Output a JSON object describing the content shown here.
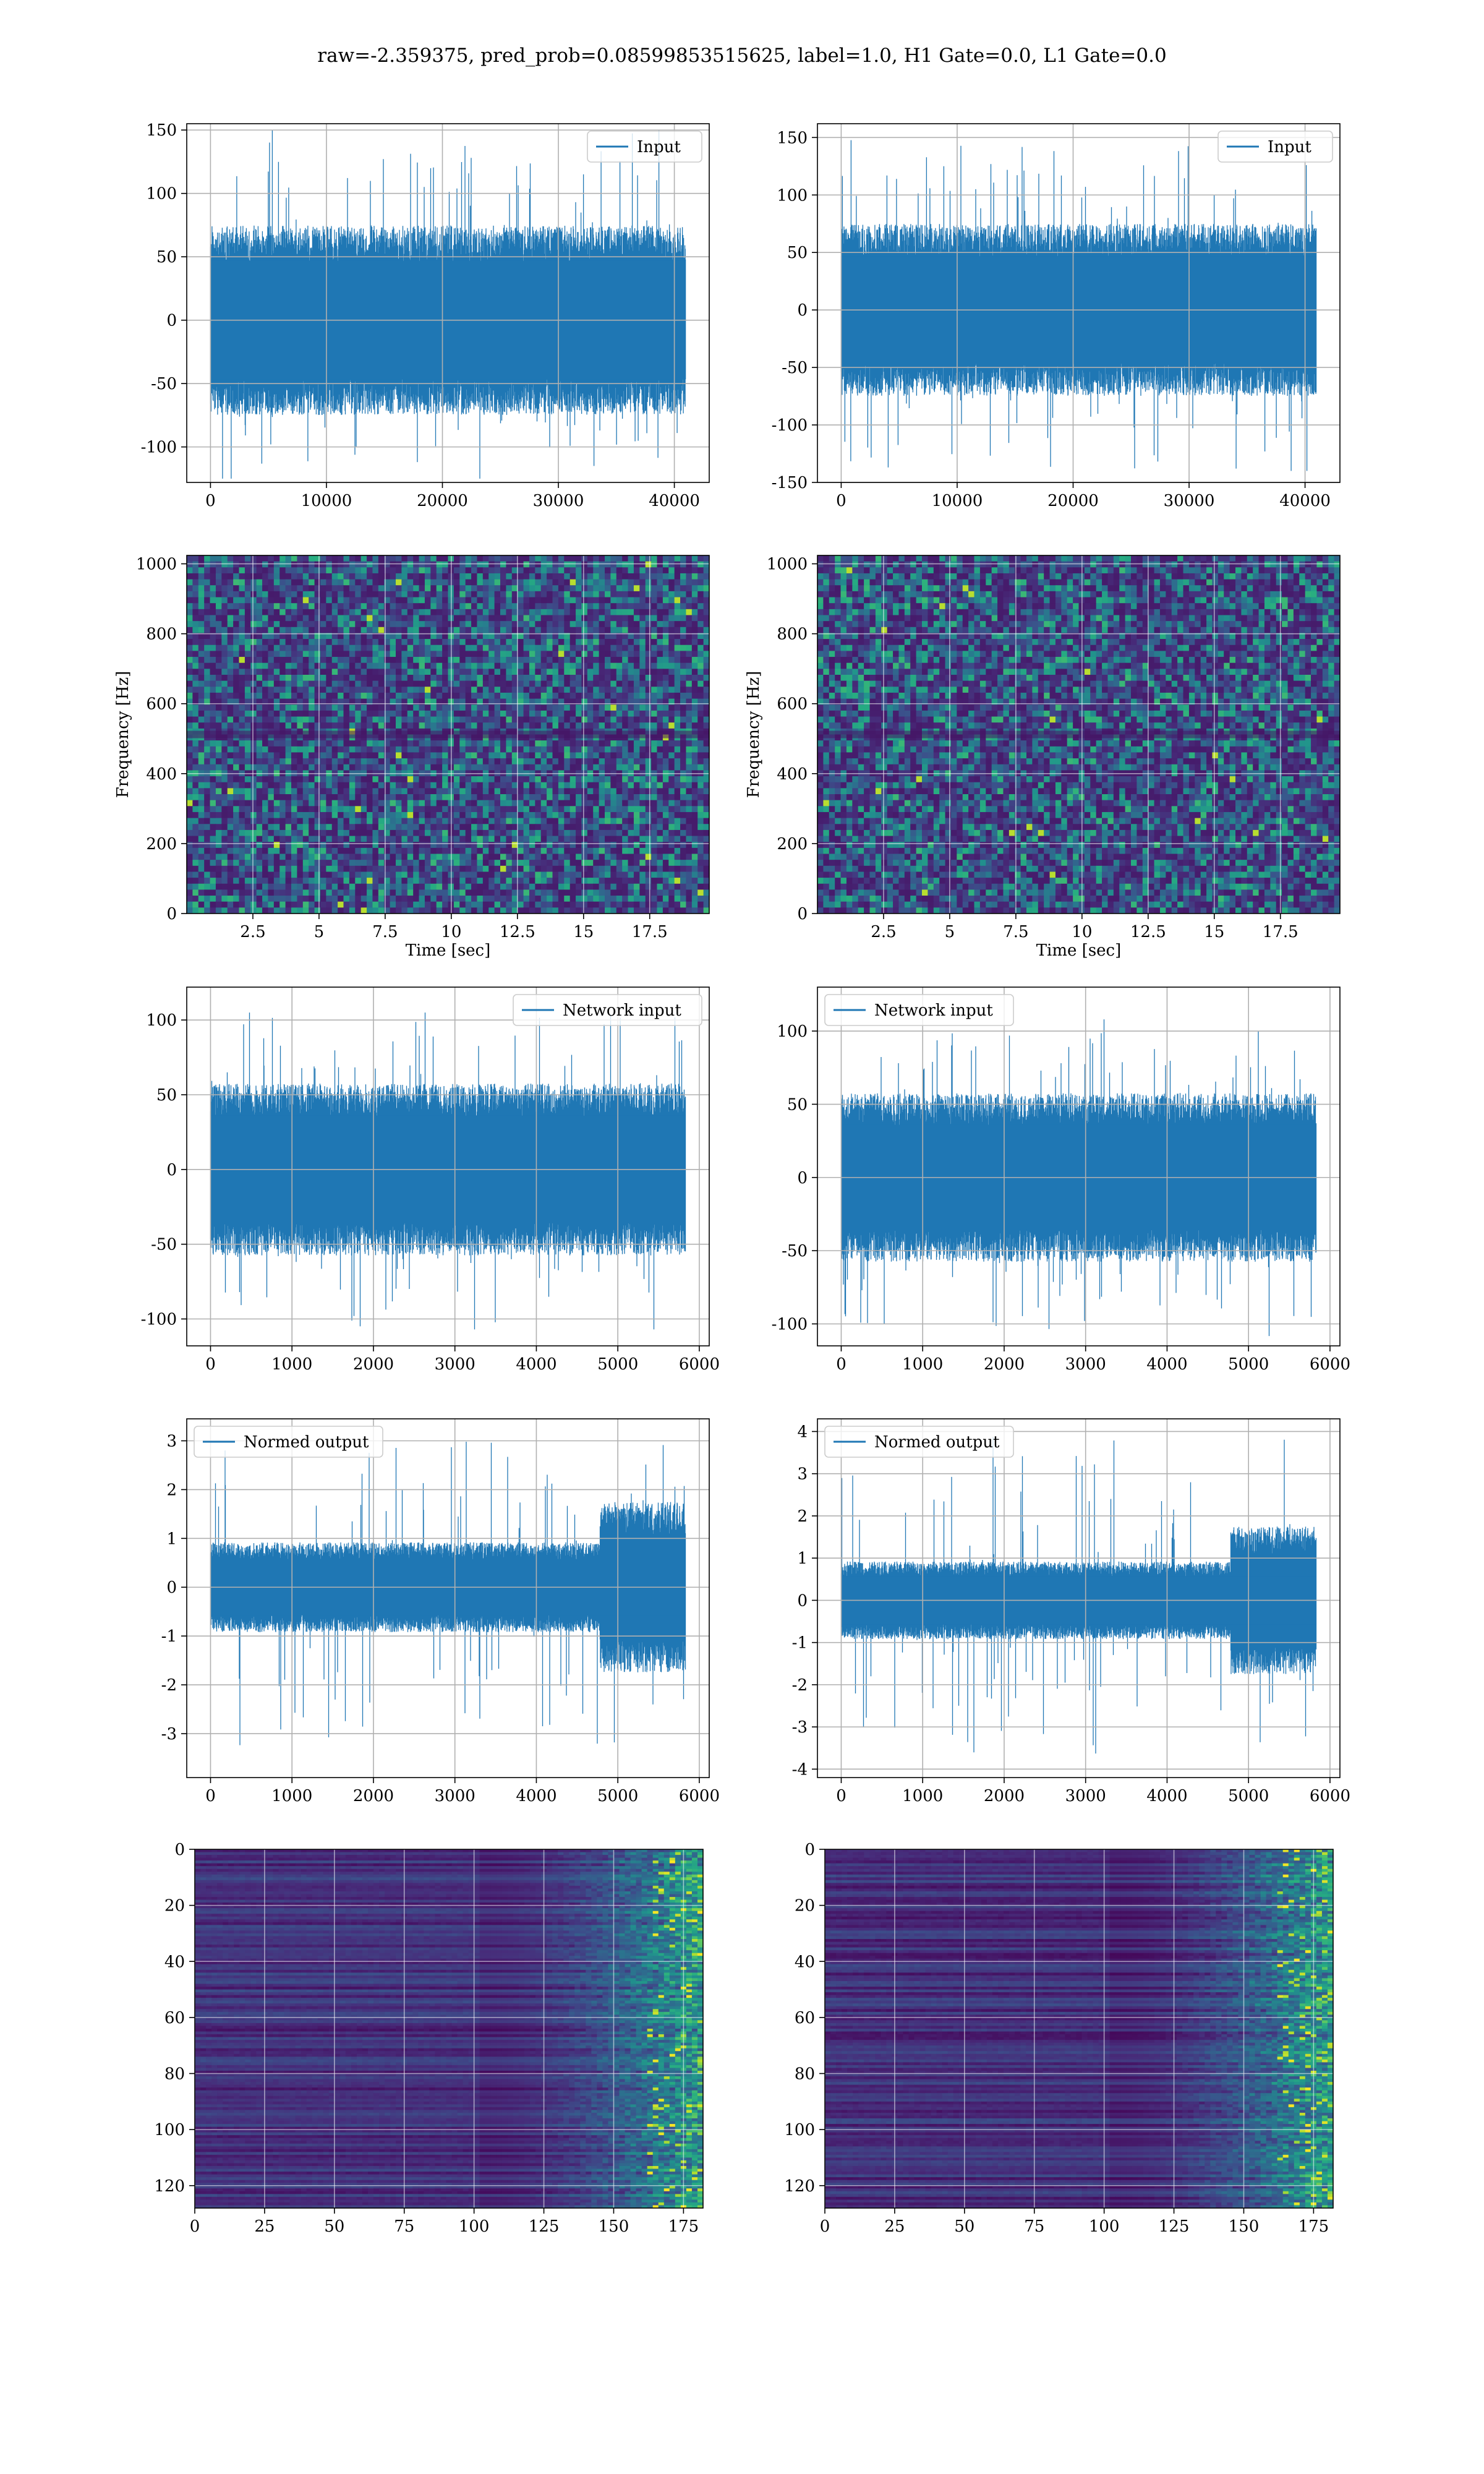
{
  "figure": {
    "suptitle": "raw=-2.359375, pred_prob=0.08599853515625, label=1.0, H1 Gate=0.0, L1 Gate=0.0"
  },
  "chart_data": [
    {
      "id": "input_left",
      "type": "line",
      "legend": "Input",
      "legend_loc": "upper right",
      "series": [
        {
          "name": "Input",
          "color": "#1f77b4",
          "n": 40960,
          "range": [
            -125,
            150
          ],
          "envelope": 65
        }
      ],
      "xlim": [
        -2048,
        43008
      ],
      "ylim": [
        -128,
        155
      ],
      "xticks": [
        0,
        10000,
        20000,
        30000,
        40000
      ],
      "yticks": [
        -100,
        -50,
        0,
        50,
        100,
        150
      ],
      "grid": true
    },
    {
      "id": "input_right",
      "type": "line",
      "legend": "Input",
      "legend_loc": "upper right",
      "series": [
        {
          "name": "Input",
          "color": "#1f77b4",
          "n": 40960,
          "range": [
            -140,
            150
          ],
          "envelope": 65
        }
      ],
      "xlim": [
        -2048,
        43008
      ],
      "ylim": [
        -150,
        162
      ],
      "xticks": [
        0,
        10000,
        20000,
        30000,
        40000
      ],
      "yticks": [
        -150,
        -100,
        -50,
        0,
        50,
        100,
        150
      ],
      "grid": true
    },
    {
      "id": "spec_left",
      "type": "heatmap",
      "colormap": "viridis",
      "xlabel": "Time [sec]",
      "ylabel": "Frequency [Hz]",
      "xlim": [
        0,
        19.75
      ],
      "ylim": [
        0,
        1024
      ],
      "xticks": [
        2.5,
        5.0,
        7.5,
        10.0,
        12.5,
        15.0,
        17.5
      ],
      "yticks": [
        0,
        200,
        400,
        600,
        800,
        1000
      ],
      "grid": true
    },
    {
      "id": "spec_right",
      "type": "heatmap",
      "colormap": "viridis",
      "xlabel": "Time [sec]",
      "ylabel": "Frequency [Hz]",
      "xlim": [
        0,
        19.75
      ],
      "ylim": [
        0,
        1024
      ],
      "xticks": [
        2.5,
        5.0,
        7.5,
        10.0,
        12.5,
        15.0,
        17.5
      ],
      "yticks": [
        0,
        200,
        400,
        600,
        800,
        1000
      ],
      "grid": true
    },
    {
      "id": "net_left",
      "type": "line",
      "legend": "Network input",
      "legend_loc": "upper right",
      "series": [
        {
          "name": "Network input",
          "color": "#1f77b4",
          "n": 5830,
          "range": [
            -107,
            105
          ],
          "envelope": 50
        }
      ],
      "xlim": [
        -292,
        6122
      ],
      "ylim": [
        -118,
        122
      ],
      "xticks": [
        0,
        1000,
        2000,
        3000,
        4000,
        5000,
        6000
      ],
      "yticks": [
        -100,
        -50,
        0,
        50,
        100
      ],
      "grid": true
    },
    {
      "id": "net_right",
      "type": "line",
      "legend": "Network input",
      "legend_loc": "upper left",
      "series": [
        {
          "name": "Network input",
          "color": "#1f77b4",
          "n": 5830,
          "range": [
            -109,
            108
          ],
          "envelope": 50
        }
      ],
      "xlim": [
        -292,
        6122
      ],
      "ylim": [
        -115,
        130
      ],
      "xticks": [
        0,
        1000,
        2000,
        3000,
        4000,
        5000,
        6000
      ],
      "yticks": [
        -100,
        -50,
        0,
        50,
        100
      ],
      "grid": true
    },
    {
      "id": "norm_left",
      "type": "line",
      "legend": "Normed output",
      "legend_loc": "upper left",
      "series": [
        {
          "name": "Normed output",
          "color": "#1f77b4",
          "n": 5830,
          "range": [
            -3.5,
            3.1
          ],
          "envelope": 0.8
        }
      ],
      "xlim": [
        -292,
        6122
      ],
      "ylim": [
        -3.9,
        3.45
      ],
      "xticks": [
        0,
        1000,
        2000,
        3000,
        4000,
        5000,
        6000
      ],
      "yticks": [
        -3,
        -2,
        -1,
        0,
        1,
        2,
        3
      ],
      "grid": true
    },
    {
      "id": "norm_right",
      "type": "line",
      "legend": "Normed output",
      "legend_loc": "upper left",
      "series": [
        {
          "name": "Normed output",
          "color": "#1f77b4",
          "n": 5830,
          "range": [
            -3.7,
            4.0
          ],
          "envelope": 0.8
        }
      ],
      "xlim": [
        -292,
        6122
      ],
      "ylim": [
        -4.2,
        4.3
      ],
      "xticks": [
        0,
        1000,
        2000,
        3000,
        4000,
        5000,
        6000
      ],
      "yticks": [
        -4,
        -3,
        -2,
        -1,
        0,
        1,
        2,
        3,
        4
      ],
      "grid": true
    },
    {
      "id": "act_left",
      "type": "heatmap",
      "colormap": "viridis",
      "xlim": [
        0,
        182
      ],
      "ylim": [
        128,
        0
      ],
      "xticks": [
        0,
        25,
        50,
        75,
        100,
        125,
        150,
        175
      ],
      "yticks": [
        0,
        20,
        40,
        60,
        80,
        100,
        120
      ],
      "grid": true
    },
    {
      "id": "act_right",
      "type": "heatmap",
      "colormap": "viridis",
      "xlim": [
        0,
        182
      ],
      "ylim": [
        128,
        0
      ],
      "xticks": [
        0,
        25,
        50,
        75,
        100,
        125,
        150,
        175
      ],
      "yticks": [
        0,
        20,
        40,
        60,
        80,
        100,
        120
      ],
      "grid": true
    }
  ]
}
